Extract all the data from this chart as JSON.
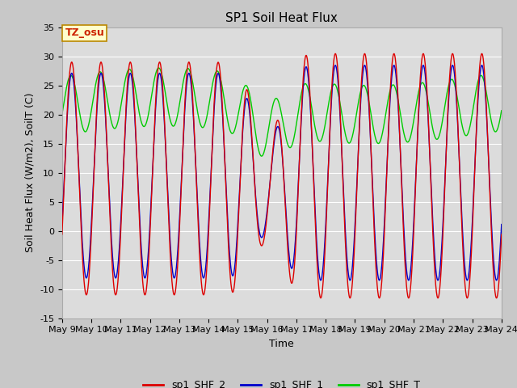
{
  "title": "SP1 Soil Heat Flux",
  "xlabel": "Time",
  "ylabel": "Soil Heat Flux (W/m2), SoilT (C)",
  "ylim": [
    -15,
    35
  ],
  "colors": {
    "sp1_SHF_2": "#dd0000",
    "sp1_SHF_1": "#0000cc",
    "sp1_SHF_T": "#00cc00"
  },
  "legend_labels": [
    "sp1_SHF_2",
    "sp1_SHF_1",
    "sp1_SHF_T"
  ],
  "plot_bg": "#dcdcdc",
  "fig_bg": "#c8c8c8",
  "grid_color": "#ffffff",
  "annotation": "TZ_osu",
  "annotation_color": "#cc2200",
  "annotation_bg": "#ffffcc",
  "annotation_border": "#bb8800",
  "title_fontsize": 11,
  "axis_label_fontsize": 9,
  "tick_fontsize": 8
}
